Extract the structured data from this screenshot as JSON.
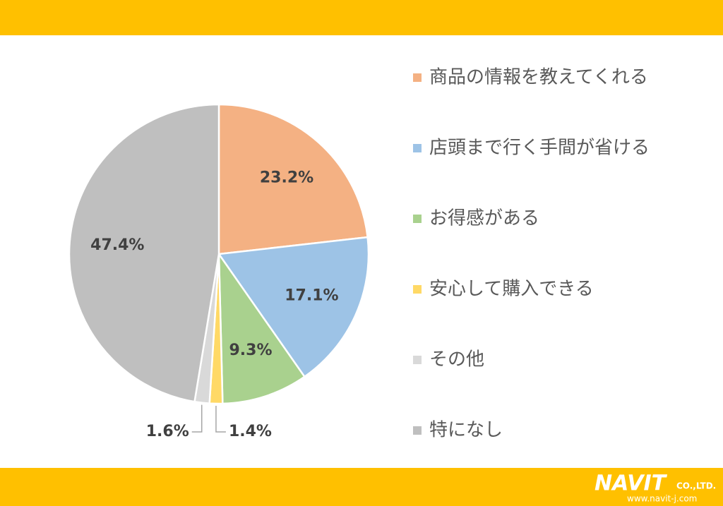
{
  "chart_data": {
    "type": "pie",
    "categories": [
      "商品の情報を教えてくれる",
      "店頭まで行く手間が省ける",
      "お得感がある",
      "安心して購入できる",
      "その他",
      "特になし"
    ],
    "values": [
      23.2,
      17.1,
      9.3,
      1.4,
      1.6,
      47.4
    ],
    "value_labels": [
      "23.2%",
      "17.1%",
      "9.3%",
      "1.4%",
      "1.6%",
      "47.4%"
    ],
    "colors": [
      "#f4b183",
      "#9dc3e6",
      "#a9d18e",
      "#ffd966",
      "#d9d9d9",
      "#bfbfbf"
    ],
    "legend": "right"
  },
  "footer": {
    "logo": "NAVIT",
    "company": "CO.,LTD.",
    "url": "www.navit-j.com"
  }
}
